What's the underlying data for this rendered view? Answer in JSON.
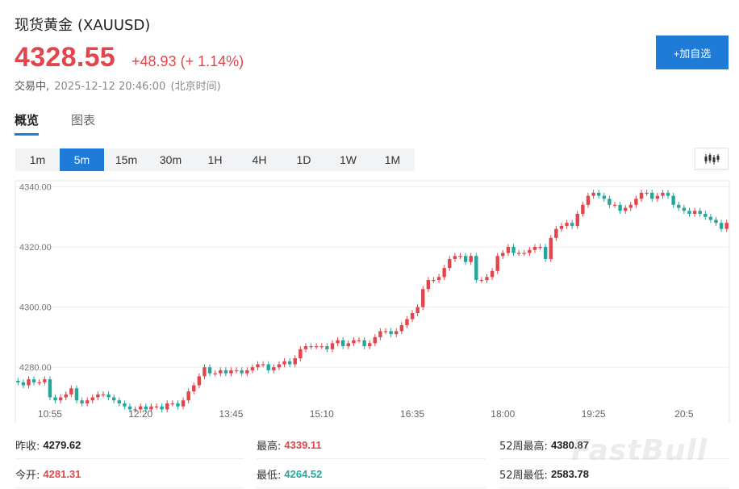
{
  "header": {
    "title": "现货黄金",
    "symbol": "(XAUUSD)",
    "price": "4328.55",
    "change": "+48.93",
    "change_pct": "(+ 1.14%)",
    "status": "交易中,",
    "datetime": "2025-12-12 20:46:00",
    "timezone": "(北京时间)",
    "add_watchlist_label": "+加自选"
  },
  "colors": {
    "up": "#e2454b",
    "down": "#26a69a",
    "accent": "#1f7bd8"
  },
  "tabs": [
    {
      "label": "概览",
      "active": true
    },
    {
      "label": "图表",
      "active": false
    }
  ],
  "intervals": [
    {
      "label": "1m",
      "active": false
    },
    {
      "label": "5m",
      "active": true
    },
    {
      "label": "15m",
      "active": false
    },
    {
      "label": "30m",
      "active": false
    },
    {
      "label": "1H",
      "active": false
    },
    {
      "label": "4H",
      "active": false
    },
    {
      "label": "1D",
      "active": false
    },
    {
      "label": "1W",
      "active": false
    },
    {
      "label": "1M",
      "active": false
    }
  ],
  "chart_type_icon": "candlestick-icon",
  "chart_data": {
    "type": "candlestick",
    "ylim": [
      4261,
      4342
    ],
    "y_ticks": [
      "4340.00",
      "4320.00",
      "4300.00",
      "4280.00"
    ],
    "y_tick_values": [
      4340,
      4320,
      4300,
      4280
    ],
    "x_ticks": [
      "10:55",
      "12:20",
      "13:45",
      "15:10",
      "16:35",
      "18:00",
      "19:25",
      "20:5"
    ],
    "x_tick_index": [
      6,
      23,
      40,
      57,
      74,
      91,
      108,
      125
    ],
    "grid": "horizontal",
    "close": [
      4275,
      4274,
      4276,
      4275,
      4275,
      4276,
      4270,
      4269,
      4270,
      4271,
      4273,
      4269,
      4268,
      4269,
      4270,
      4271,
      4271,
      4270,
      4269,
      4268,
      4267,
      4266,
      4266,
      4267,
      4266,
      4267,
      4267,
      4266,
      4268,
      4268,
      4267,
      4269,
      4272,
      4274,
      4277,
      4280,
      4278,
      4278,
      4279,
      4278,
      4279,
      4279,
      4278,
      4279,
      4280,
      4281,
      4281,
      4279,
      4280,
      4281,
      4282,
      4281,
      4283,
      4286,
      4287,
      4287,
      4287,
      4287,
      4286,
      4288,
      4289,
      4287,
      4288,
      4289,
      4289,
      4287,
      4288,
      4290,
      4292,
      4292,
      4291,
      4292,
      4294,
      4296,
      4298,
      4300,
      4306,
      4309,
      4309,
      4310,
      4313,
      4316,
      4317,
      4317,
      4315,
      4317,
      4309,
      4309,
      4310,
      4312,
      4317,
      4318,
      4320,
      4318,
      4318,
      4318,
      4319,
      4320,
      4320,
      4316,
      4323,
      4326,
      4327,
      4328,
      4327,
      4331,
      4334,
      4337,
      4338,
      4337,
      4336,
      4334,
      4334,
      4332,
      4333,
      4334,
      4336,
      4338,
      4338,
      4336,
      4337,
      4338,
      4337,
      4334,
      4333,
      4332,
      4331,
      4332,
      4331,
      4330,
      4329,
      4328,
      4326,
      4328
    ],
    "ohlc_note_hidden": ""
  },
  "stats": {
    "prev_close_label": "昨收:",
    "prev_close": "4279.62",
    "open_label": "今开:",
    "open": "4281.31",
    "high_label": "最高:",
    "high": "4339.11",
    "low_label": "最低:",
    "low": "4264.52",
    "high52_label": "52周最高:",
    "high52": "4380.87",
    "low52_label": "52周最低:",
    "low52": "2583.78"
  },
  "watermark": "FastBull"
}
